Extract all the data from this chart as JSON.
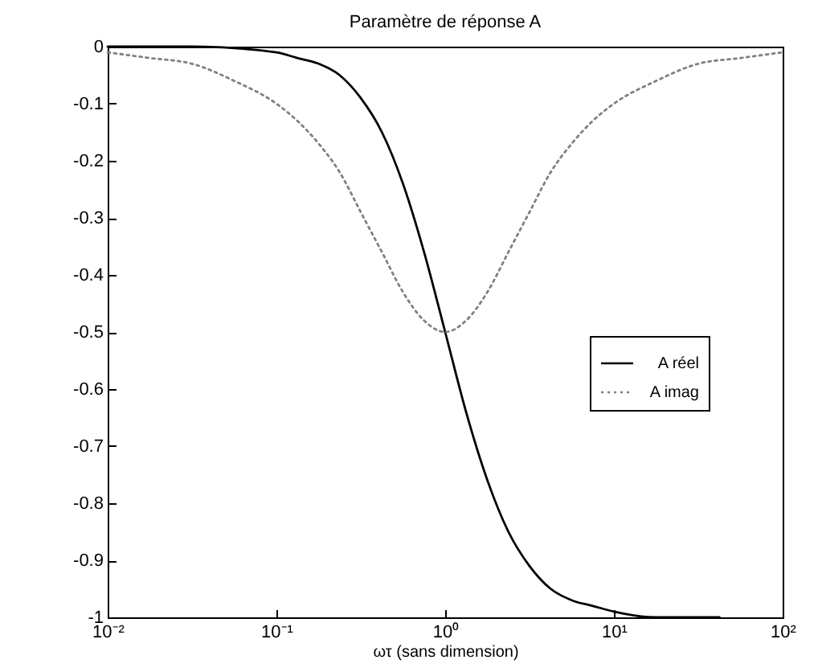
{
  "chart_data": {
    "type": "line",
    "title": "Paramètre de réponse A",
    "xlabel": "ωτ (sans dimension)",
    "log": "x",
    "grid": false,
    "legend": "right",
    "xlim": [
      0.01,
      100
    ],
    "xticks": [
      {
        "value": 0.01,
        "label": "10⁻²"
      },
      {
        "value": 0.1,
        "label": "10⁻¹"
      },
      {
        "value": 1,
        "label": "10⁰"
      },
      {
        "value": 10,
        "label": "10¹"
      },
      {
        "value": 100,
        "label": "10²"
      }
    ],
    "ylim": [
      -1,
      0
    ],
    "yticks": [
      -1,
      -0.9,
      -0.8,
      -0.7,
      -0.6,
      -0.5,
      -0.4,
      -0.3,
      -0.2,
      -0.1,
      0
    ],
    "series": [
      {
        "name": "A réel",
        "color": "#000000",
        "line_style": "solid",
        "x": [
          0.01,
          0.0316,
          0.1,
          0.133,
          0.178,
          0.237,
          0.316,
          0.422,
          0.562,
          0.75,
          1,
          1.33,
          1.78,
          2.37,
          3.16,
          4.22,
          5.62,
          7.5,
          10,
          17.8,
          31.6,
          42.2
        ],
        "values": [
          0,
          0,
          -0.01,
          -0.02,
          -0.03,
          -0.05,
          -0.09,
          -0.15,
          -0.24,
          -0.36,
          -0.5,
          -0.64,
          -0.76,
          -0.85,
          -0.91,
          -0.95,
          -0.97,
          -0.98,
          -0.99,
          -1,
          -1,
          -1
        ]
      },
      {
        "name": "A imag",
        "color": "#808080",
        "line_style": "dotted",
        "x": [
          0.01,
          0.0178,
          0.0316,
          0.0562,
          0.1,
          0.133,
          0.178,
          0.237,
          0.316,
          0.422,
          0.562,
          0.75,
          1,
          1.33,
          1.78,
          2.37,
          3.16,
          4.22,
          5.62,
          7.5,
          10,
          17.8,
          31.6,
          56.2,
          100
        ],
        "values": [
          -0.01,
          -0.02,
          -0.03,
          -0.06,
          -0.1,
          -0.13,
          -0.17,
          -0.22,
          -0.29,
          -0.36,
          -0.43,
          -0.48,
          -0.5,
          -0.48,
          -0.43,
          -0.36,
          -0.29,
          -0.22,
          -0.17,
          -0.13,
          -0.1,
          -0.06,
          -0.03,
          -0.02,
          -0.01
        ]
      }
    ]
  }
}
